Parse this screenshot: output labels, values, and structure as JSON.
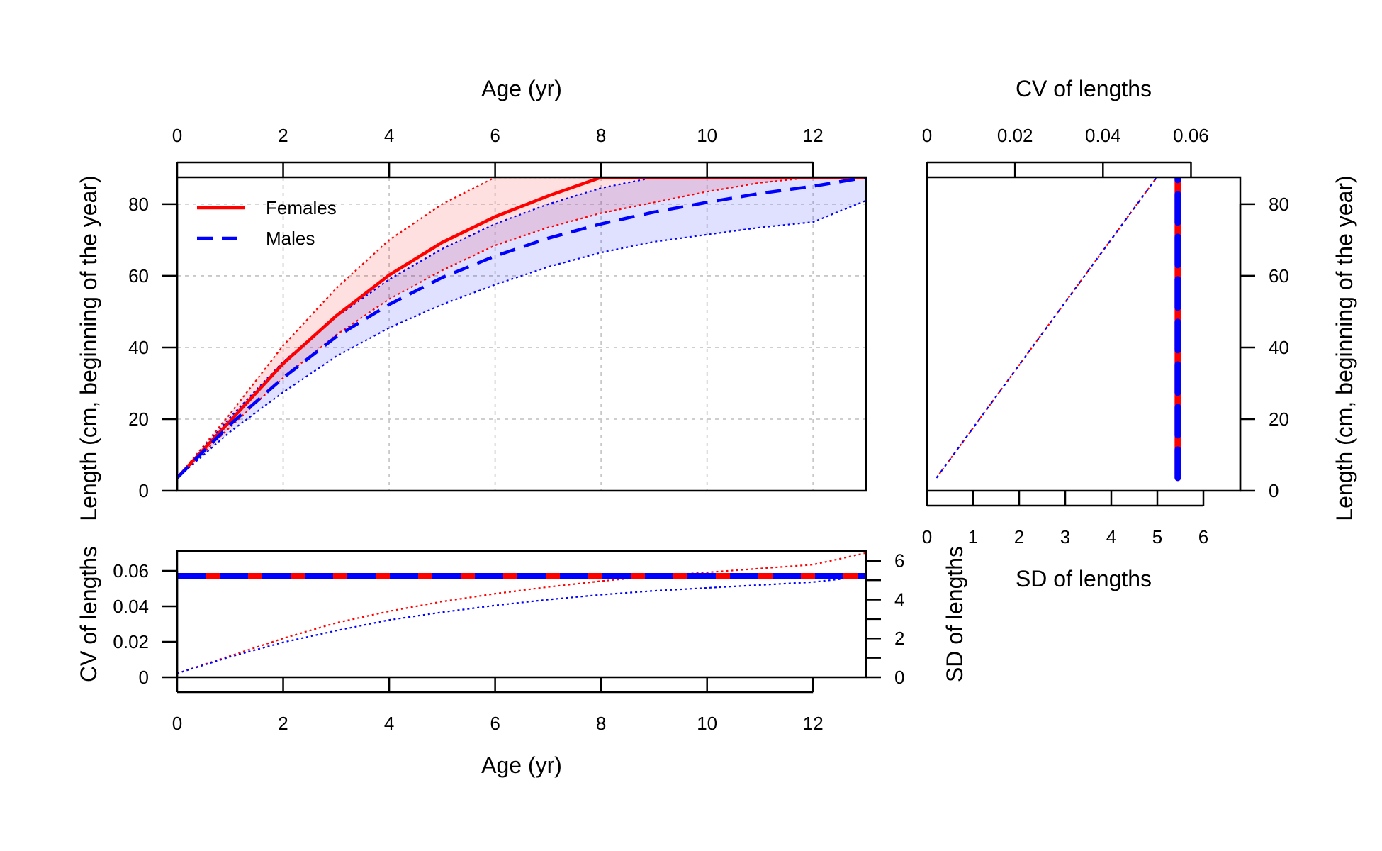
{
  "colors": {
    "female": "#ff0000",
    "male": "#0000ff",
    "female_band": "rgba(255,0,0,0.12)",
    "male_band": "rgba(0,0,255,0.12)",
    "grid": "#c8c8c8"
  },
  "chart_data": [
    {
      "id": "length_at_age",
      "type": "line",
      "xlabel": "Age (yr)",
      "ylabel": "Length (cm, beginning of the year)",
      "xlim": [
        0,
        13
      ],
      "ylim": [
        0,
        87.5
      ],
      "x_ticks": [
        0,
        2,
        4,
        6,
        8,
        10,
        12
      ],
      "y_ticks": [
        0,
        20,
        40,
        60,
        80
      ],
      "grid": true,
      "legend": {
        "placement": "top-left",
        "entries": [
          "Females",
          "Males"
        ]
      },
      "x": [
        0,
        1,
        2,
        3,
        4,
        5,
        6,
        7,
        8,
        9,
        10,
        11,
        12,
        13
      ],
      "series": [
        {
          "name": "Females",
          "style": "solid",
          "mean": [
            3.6,
            19.5,
            35.5,
            48.8,
            60.2,
            69.3,
            76.5,
            82.3,
            87.5,
            87.5,
            87.5,
            87.5,
            87.5,
            87.5
          ],
          "upper": [
            3.6,
            21.5,
            40.5,
            56.5,
            70.0,
            80.0,
            87.5,
            87.5,
            87.5,
            87.5,
            87.5,
            87.5,
            87.5,
            87.5
          ],
          "lower": [
            3.6,
            17.8,
            31.5,
            43.5,
            53.5,
            61.5,
            68.5,
            73.5,
            77.5,
            80.5,
            83.5,
            86.0,
            87.5,
            87.5
          ]
        },
        {
          "name": "Males",
          "style": "dashed",
          "mean": [
            3.6,
            18.5,
            31.5,
            43.0,
            52.0,
            59.5,
            65.5,
            70.5,
            74.5,
            77.8,
            80.5,
            83.0,
            85.0,
            87.5
          ],
          "upper": [
            3.6,
            20.5,
            36.0,
            48.5,
            59.0,
            67.5,
            74.5,
            80.0,
            84.5,
            87.5,
            87.5,
            87.5,
            87.5,
            87.5
          ],
          "lower": [
            3.6,
            16.5,
            27.5,
            37.5,
            45.5,
            52.0,
            57.5,
            62.5,
            66.5,
            69.5,
            71.5,
            73.5,
            75.0,
            81.0
          ]
        }
      ]
    },
    {
      "id": "cv_sd_at_age",
      "type": "line",
      "xlabel": "Age (yr)",
      "ylabel": "CV of lengths",
      "ylabel_right": "SD of lengths",
      "xlim": [
        0,
        13
      ],
      "ylim": [
        0,
        0.0712
      ],
      "ylim_right": [
        0,
        6.5
      ],
      "x_ticks": [
        0,
        2,
        4,
        6,
        8,
        10,
        12
      ],
      "y_ticks": [
        0,
        0.02,
        0.04,
        0.06
      ],
      "y_ticks_right": [
        0,
        2,
        4,
        6
      ],
      "cv_value": 0.057,
      "x": [
        0,
        1,
        2,
        3,
        4,
        5,
        6,
        7,
        8,
        9,
        10,
        11,
        12,
        13
      ],
      "series": [
        {
          "name": "Females",
          "sd": [
            0.2,
            1.1,
            2.0,
            2.8,
            3.4,
            3.9,
            4.3,
            4.65,
            4.95,
            5.2,
            5.4,
            5.6,
            5.8,
            6.4
          ]
        },
        {
          "name": "Males",
          "sd": [
            0.2,
            1.05,
            1.8,
            2.4,
            2.95,
            3.35,
            3.7,
            4.0,
            4.25,
            4.45,
            4.6,
            4.75,
            4.9,
            5.2
          ]
        }
      ]
    },
    {
      "id": "cv_sd_at_length",
      "type": "line",
      "xlabel": "SD of lengths",
      "xlabel_top": "CV of lengths",
      "ylabel": "Length (cm, beginning of the year)",
      "xlim": [
        0,
        6.8
      ],
      "xlim_top": [
        0,
        0.0712
      ],
      "ylim": [
        0,
        87.5
      ],
      "x_ticks": [
        0,
        1,
        2,
        3,
        4,
        5,
        6
      ],
      "x_ticks_top": [
        0,
        0.02,
        0.04,
        0.06
      ],
      "y_ticks": [
        0,
        20,
        40,
        60,
        80
      ],
      "cv_value": 0.057,
      "length_range": [
        3.6,
        87.5
      ]
    }
  ]
}
